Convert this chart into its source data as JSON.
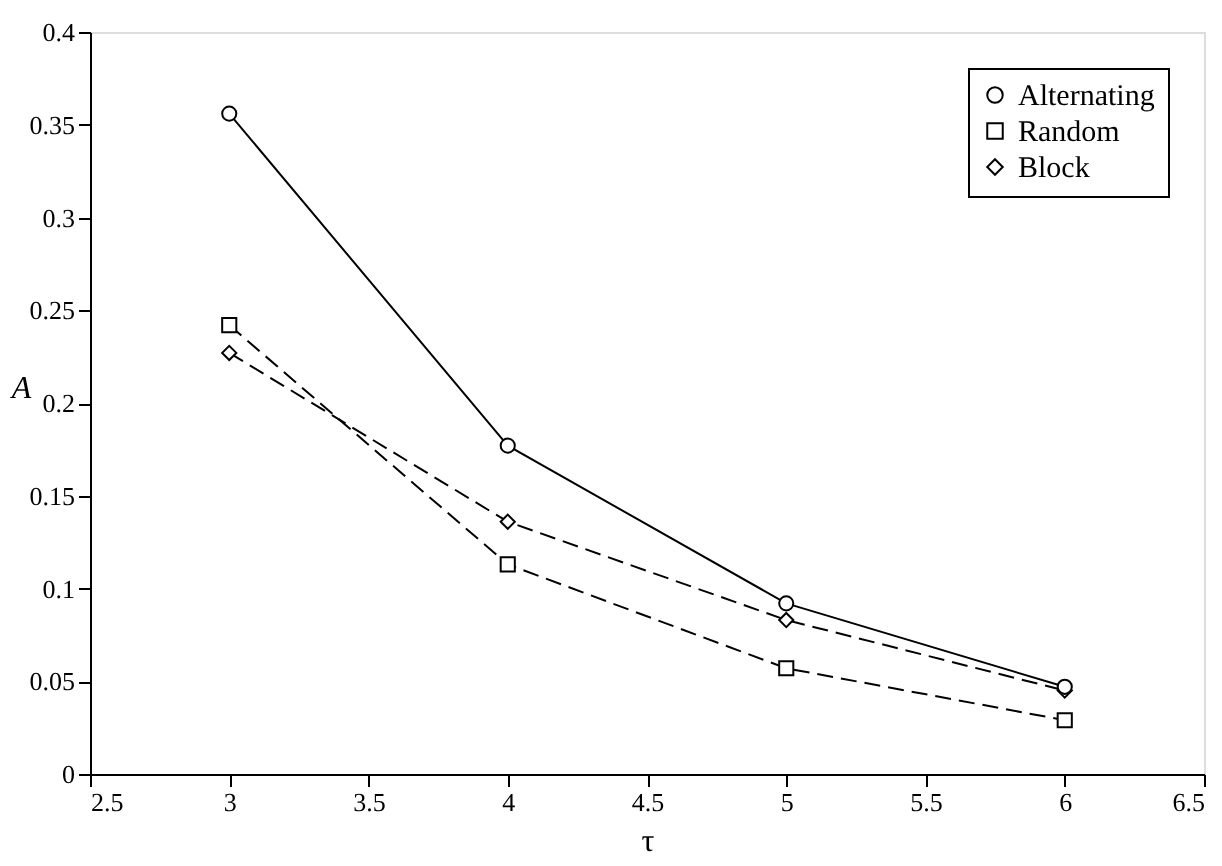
{
  "chart_data": {
    "type": "line",
    "xlabel": "τ",
    "ylabel": "A",
    "x": [
      3,
      4,
      5,
      6
    ],
    "series": [
      {
        "name": "Alternating",
        "color": "#000000",
        "values": [
          0.356,
          0.177,
          0.092,
          0.047
        ],
        "marker": "circle",
        "line_style": "solid"
      },
      {
        "name": "Random",
        "color": "#000000",
        "values": [
          0.242,
          0.113,
          0.057,
          0.029
        ],
        "marker": "square",
        "line_style": "dashed"
      },
      {
        "name": "Block",
        "color": "#000000",
        "values": [
          0.227,
          0.136,
          0.083,
          0.045
        ],
        "marker": "diamond",
        "line_style": "dashed"
      }
    ],
    "xlim": [
      2.5,
      6.5
    ],
    "xticks": [
      2.5,
      3,
      3.5,
      4,
      4.5,
      5,
      5.5,
      6,
      6.5
    ],
    "ylim": [
      0,
      0.4
    ],
    "yticks": [
      0,
      0.05,
      0.1,
      0.15,
      0.2,
      0.25,
      0.3,
      0.35,
      0.4
    ],
    "grid": false,
    "legend": "top right"
  }
}
